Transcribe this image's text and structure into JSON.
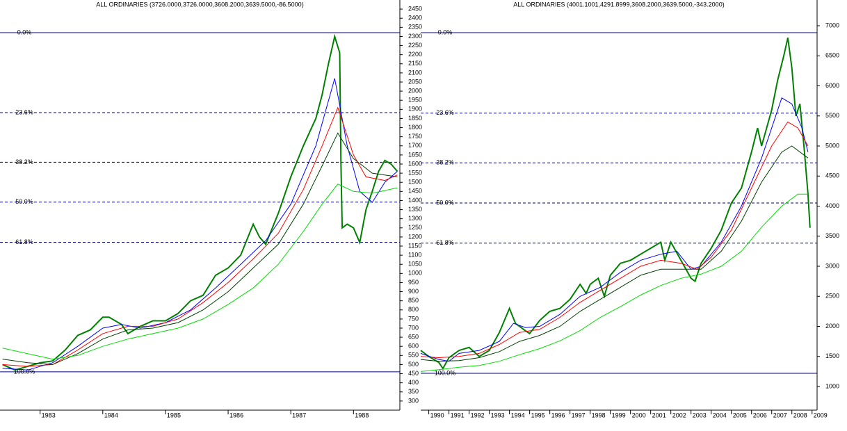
{
  "chart_data": [
    {
      "type": "line",
      "title": "ALL ORDINARIES (3726.0000,3726.0000,3608.2000,3639.5000,-86.5000)",
      "xlim": [
        1982.36,
        1988.74
      ],
      "xticks": [
        1983,
        1984,
        1985,
        1986,
        1987,
        1988
      ],
      "ylim": [
        250,
        2500
      ],
      "yticks": [
        300,
        350,
        400,
        450,
        500,
        550,
        600,
        650,
        700,
        750,
        800,
        850,
        900,
        950,
        1000,
        1050,
        1100,
        1150,
        1200,
        1250,
        1300,
        1350,
        1400,
        1450,
        1500,
        1550,
        1600,
        1650,
        1700,
        1750,
        1800,
        1850,
        1900,
        1950,
        2000,
        2050,
        2100,
        2150,
        2200,
        2250,
        2300,
        2350,
        2400,
        2450
      ],
      "fib_color": "#000080",
      "fib_label_color": "#0000ff",
      "fib_levels": [
        {
          "label": "0.0%",
          "value": 2321
        },
        {
          "label": "23.6%",
          "value": 1882
        },
        {
          "label": "38.2%",
          "value": 1610
        },
        {
          "label": "50.0%",
          "value": 1391
        },
        {
          "label": "61.8%",
          "value": 1171
        },
        {
          "label": "100.0%",
          "value": 460
        }
      ],
      "series": [
        {
          "color": "#008000",
          "width": 2,
          "x": [
            1982.4,
            1982.6,
            1982.8,
            1983.0,
            1983.2,
            1983.4,
            1983.6,
            1983.8,
            1984.0,
            1984.1,
            1984.3,
            1984.4,
            1984.6,
            1984.8,
            1985.0,
            1985.2,
            1985.4,
            1985.6,
            1985.8,
            1986.0,
            1986.2,
            1986.4,
            1986.5,
            1986.6,
            1986.8,
            1987.0,
            1987.2,
            1987.4,
            1987.5,
            1987.6,
            1987.7,
            1987.78,
            1987.8,
            1987.82,
            1987.9,
            1988.0,
            1988.1,
            1988.2,
            1988.3,
            1988.4,
            1988.5,
            1988.6,
            1988.7
          ],
          "values": [
            500,
            470,
            490,
            510,
            520,
            580,
            660,
            690,
            760,
            760,
            720,
            670,
            710,
            740,
            740,
            780,
            850,
            880,
            990,
            1030,
            1100,
            1270,
            1200,
            1160,
            1330,
            1530,
            1700,
            1850,
            1980,
            2150,
            2300,
            2210,
            1600,
            1250,
            1270,
            1250,
            1170,
            1350,
            1450,
            1560,
            1620,
            1600,
            1560
          ]
        },
        {
          "color": "#0000ff",
          "width": 1,
          "x": [
            1982.4,
            1982.8,
            1983.2,
            1983.6,
            1984.0,
            1984.3,
            1984.6,
            1985.0,
            1985.4,
            1985.8,
            1986.2,
            1986.6,
            1987.0,
            1987.4,
            1987.7,
            1987.9,
            1988.1,
            1988.3,
            1988.5,
            1988.7
          ],
          "values": [
            480,
            470,
            510,
            600,
            700,
            720,
            700,
            730,
            800,
            920,
            1050,
            1180,
            1380,
            1700,
            2070,
            1700,
            1450,
            1390,
            1500,
            1560
          ]
        },
        {
          "color": "#ff0000",
          "width": 1,
          "x": [
            1982.4,
            1982.8,
            1983.2,
            1983.6,
            1984.0,
            1984.4,
            1984.8,
            1985.2,
            1985.6,
            1986.0,
            1986.4,
            1986.8,
            1987.2,
            1987.5,
            1987.75,
            1988.0,
            1988.2,
            1988.5,
            1988.7
          ],
          "values": [
            500,
            490,
            500,
            580,
            670,
            710,
            710,
            750,
            840,
            950,
            1080,
            1220,
            1460,
            1700,
            1910,
            1650,
            1530,
            1510,
            1540
          ]
        },
        {
          "color": "#004000",
          "width": 1,
          "x": [
            1982.4,
            1982.8,
            1983.2,
            1983.6,
            1984.0,
            1984.4,
            1984.8,
            1985.2,
            1985.6,
            1986.0,
            1986.4,
            1986.8,
            1987.2,
            1987.5,
            1987.75,
            1988.0,
            1988.3,
            1988.7
          ],
          "values": [
            530,
            510,
            500,
            560,
            640,
            690,
            700,
            730,
            800,
            900,
            1030,
            1160,
            1380,
            1590,
            1770,
            1630,
            1550,
            1530
          ]
        },
        {
          "color": "#00dd00",
          "width": 1,
          "x": [
            1982.4,
            1982.8,
            1983.2,
            1983.6,
            1984.0,
            1984.4,
            1984.8,
            1985.2,
            1985.6,
            1986.0,
            1986.4,
            1986.8,
            1987.2,
            1987.5,
            1987.75,
            1988.0,
            1988.3,
            1988.7
          ],
          "values": [
            590,
            560,
            530,
            550,
            600,
            640,
            670,
            700,
            750,
            830,
            920,
            1050,
            1230,
            1380,
            1490,
            1450,
            1440,
            1470
          ]
        }
      ]
    },
    {
      "type": "line",
      "title": "ALL ORDINARIES (4001.1001,4291.8999,3608.2000,3639.5000,-343.2000)",
      "xlim": [
        1989.6,
        2009.25
      ],
      "xticks": [
        1990,
        1991,
        1992,
        1993,
        1994,
        1995,
        1996,
        1997,
        1998,
        1999,
        2000,
        2001,
        2002,
        2003,
        2004,
        2005,
        2006,
        2007,
        2008,
        2009
      ],
      "ylim": [
        607,
        7428
      ],
      "yticks": [
        1000,
        1500,
        2000,
        2500,
        3000,
        3500,
        4000,
        4500,
        5000,
        5500,
        6000,
        6500,
        7000
      ],
      "fib_color": "#000080",
      "fib_label_color": "#0000ff",
      "fib_levels": [
        {
          "label": "0.0%",
          "value": 6884
        },
        {
          "label": "23.6%",
          "value": 5547
        },
        {
          "label": "38.2%",
          "value": 4720
        },
        {
          "label": "50.0%",
          "value": 4052
        },
        {
          "label": "61.8%",
          "value": 3384
        },
        {
          "label": "100.0%",
          "value": 1220
        }
      ],
      "series": [
        {
          "color": "#008000",
          "width": 2,
          "x": [
            1989.6,
            1990.0,
            1990.5,
            1990.7,
            1991.0,
            1991.5,
            1992.0,
            1992.5,
            1993.0,
            1993.5,
            1994.0,
            1994.3,
            1994.7,
            1995.0,
            1995.5,
            1996.0,
            1996.5,
            1997.0,
            1997.5,
            1997.8,
            1998.0,
            1998.4,
            1998.7,
            1999.0,
            1999.5,
            2000.0,
            2000.5,
            2001.0,
            2001.5,
            2001.7,
            2002.0,
            2002.5,
            2003.0,
            2003.2,
            2003.5,
            2004.0,
            2004.5,
            2005.0,
            2005.5,
            2006.0,
            2006.3,
            2006.5,
            2007.0,
            2007.3,
            2007.6,
            2007.8,
            2008.0,
            2008.2,
            2008.4,
            2008.6,
            2008.8,
            2008.9
          ],
          "values": [
            1600,
            1500,
            1400,
            1300,
            1480,
            1600,
            1650,
            1500,
            1600,
            1900,
            2300,
            2050,
            1950,
            1880,
            2100,
            2250,
            2300,
            2450,
            2700,
            2550,
            2700,
            2800,
            2500,
            2850,
            3050,
            3100,
            3200,
            3300,
            3400,
            3100,
            3400,
            3100,
            2800,
            2750,
            3050,
            3300,
            3600,
            4050,
            4300,
            4900,
            5300,
            5000,
            5600,
            6100,
            6500,
            6800,
            6300,
            5500,
            5700,
            5000,
            4200,
            3640
          ]
        },
        {
          "color": "#0000ff",
          "width": 1,
          "x": [
            1989.6,
            1990.5,
            1991.0,
            1991.5,
            1992.5,
            1993.5,
            1994.2,
            1994.8,
            1995.5,
            1996.5,
            1997.5,
            1998.5,
            1999.5,
            2000.5,
            2001.5,
            2002.3,
            2003.0,
            2003.5,
            2004.5,
            2005.5,
            2006.5,
            2007.5,
            2008.0,
            2008.5,
            2008.8
          ],
          "values": [
            1550,
            1450,
            1420,
            1550,
            1600,
            1750,
            2050,
            1980,
            2000,
            2200,
            2500,
            2650,
            2900,
            3100,
            3200,
            3250,
            2950,
            3000,
            3400,
            4000,
            4800,
            5800,
            5700,
            5300,
            4900
          ]
        },
        {
          "color": "#ff0000",
          "width": 1,
          "x": [
            1989.6,
            1990.5,
            1991.5,
            1992.5,
            1993.5,
            1994.5,
            1995.5,
            1996.5,
            1997.5,
            1998.5,
            1999.5,
            2000.5,
            2001.5,
            2002.5,
            2003.3,
            2004.0,
            2005.0,
            2006.0,
            2007.0,
            2007.8,
            2008.3,
            2008.8
          ],
          "values": [
            1500,
            1480,
            1500,
            1550,
            1700,
            1900,
            1950,
            2150,
            2400,
            2600,
            2800,
            3000,
            3100,
            3050,
            2950,
            3150,
            3600,
            4300,
            5000,
            5400,
            5300,
            5000
          ]
        },
        {
          "color": "#004000",
          "width": 1,
          "x": [
            1989.6,
            1990.5,
            1991.5,
            1992.5,
            1993.5,
            1994.5,
            1995.5,
            1996.5,
            1997.5,
            1998.5,
            1999.5,
            2000.5,
            2001.5,
            2002.5,
            2003.5,
            2004.5,
            2005.5,
            2006.5,
            2007.5,
            2008.0,
            2008.8
          ],
          "values": [
            1450,
            1420,
            1430,
            1480,
            1580,
            1750,
            1850,
            2000,
            2250,
            2450,
            2650,
            2850,
            2950,
            2950,
            2950,
            3250,
            3750,
            4400,
            4900,
            5000,
            4800
          ]
        },
        {
          "color": "#00dd00",
          "width": 1,
          "x": [
            1989.6,
            1990.5,
            1991.5,
            1992.5,
            1993.5,
            1994.5,
            1995.5,
            1996.5,
            1997.5,
            1998.5,
            1999.5,
            2000.5,
            2001.5,
            2002.5,
            2003.5,
            2004.5,
            2005.5,
            2006.5,
            2007.5,
            2008.3,
            2008.8
          ],
          "values": [
            1250,
            1280,
            1320,
            1350,
            1420,
            1530,
            1630,
            1760,
            1930,
            2150,
            2330,
            2520,
            2680,
            2800,
            2870,
            3000,
            3250,
            3650,
            4000,
            4200,
            4200
          ]
        }
      ]
    }
  ]
}
